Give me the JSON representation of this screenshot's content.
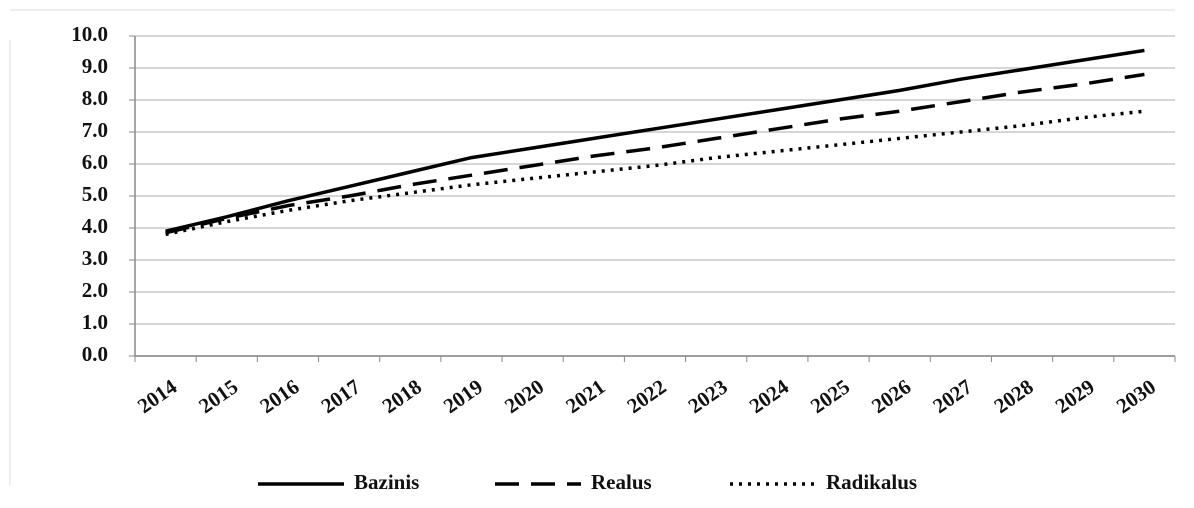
{
  "chart_data": {
    "type": "line",
    "categories": [
      "2014",
      "2015",
      "2016",
      "2017",
      "2018",
      "2019",
      "2020",
      "2021",
      "2022",
      "2023",
      "2024",
      "2025",
      "2026",
      "2027",
      "2028",
      "2029",
      "2030"
    ],
    "series": [
      {
        "name": "Bazinis",
        "color": "#000000",
        "dash": "solid",
        "values": [
          3.9,
          4.35,
          4.85,
          5.3,
          5.75,
          6.2,
          6.5,
          6.8,
          7.1,
          7.4,
          7.7,
          8.0,
          8.3,
          8.65,
          8.95,
          9.25,
          9.55
        ]
      },
      {
        "name": "Realus",
        "color": "#000000",
        "dash": "dashed",
        "values": [
          3.85,
          4.3,
          4.7,
          5.0,
          5.35,
          5.65,
          5.95,
          6.25,
          6.5,
          6.8,
          7.1,
          7.4,
          7.65,
          7.95,
          8.25,
          8.5,
          8.8
        ]
      },
      {
        "name": "Radikalus",
        "color": "#000000",
        "dash": "dotted",
        "values": [
          3.8,
          4.2,
          4.55,
          4.85,
          5.1,
          5.35,
          5.55,
          5.75,
          5.95,
          6.2,
          6.4,
          6.6,
          6.8,
          7.0,
          7.2,
          7.45,
          7.65
        ]
      }
    ],
    "ylim": [
      0,
      10
    ],
    "yticks": [
      {
        "value": 0,
        "label": "0.0"
      },
      {
        "value": 1,
        "label": "1.0"
      },
      {
        "value": 2,
        "label": "2.0"
      },
      {
        "value": 3,
        "label": "3.0"
      },
      {
        "value": 4,
        "label": "4.0"
      },
      {
        "value": 5,
        "label": "5.0"
      },
      {
        "value": 6,
        "label": "6.0"
      },
      {
        "value": 7,
        "label": "7.0"
      },
      {
        "value": 8,
        "label": "8.0"
      },
      {
        "value": 9,
        "label": "9.0"
      },
      {
        "value": 10,
        "label": "10.0"
      }
    ],
    "grid": true,
    "legend": "bottom"
  }
}
